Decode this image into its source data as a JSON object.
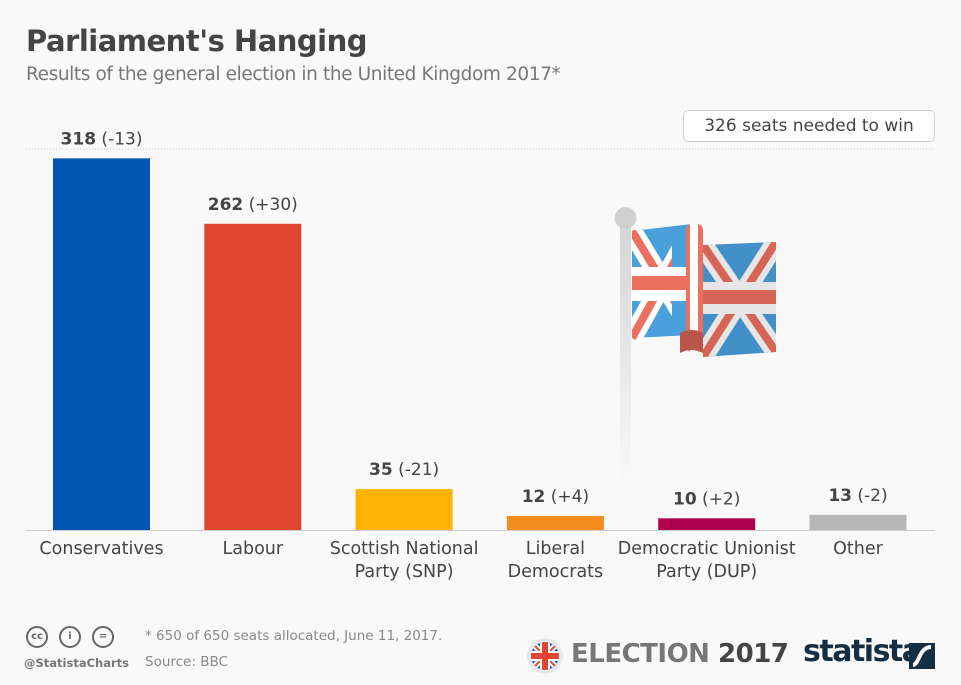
{
  "header": {
    "title": "Parliament's Hanging",
    "subtitle": "Results of the general election in the United Kingdom 2017*"
  },
  "chart_data": {
    "type": "bar",
    "categories": [
      [
        "Conservatives"
      ],
      [
        "Labour"
      ],
      [
        "Scottish National",
        "Party (SNP)"
      ],
      [
        "Liberal",
        "Democrats"
      ],
      [
        "Democratic Unionist",
        "Party (DUP)"
      ],
      [
        "Other"
      ]
    ],
    "values": [
      318,
      262,
      35,
      12,
      10,
      13
    ],
    "changes": [
      "(-13)",
      "(+30)",
      "(-21)",
      "(+4)",
      "(+2)",
      "(-2)"
    ],
    "colors": [
      "#0056b3",
      "#e04733",
      "#ffb300",
      "#f68b1f",
      "#b0004f",
      "#b7b7b7"
    ],
    "ylim": [
      0,
      326
    ],
    "threshold": {
      "value": 326,
      "label": "326 seats needed to win",
      "style": "dotted"
    },
    "grid": false
  },
  "footer": {
    "note": "* 650 of 650 seats allocated, June 11, 2017.",
    "source": "Source: BBC",
    "handle": "@StatistaCharts",
    "license_icons": [
      "cc-icon",
      "attribution-icon",
      "no-derivatives-icon"
    ],
    "election_word": "ELECTION",
    "election_year": "2017",
    "brand": "statista"
  }
}
